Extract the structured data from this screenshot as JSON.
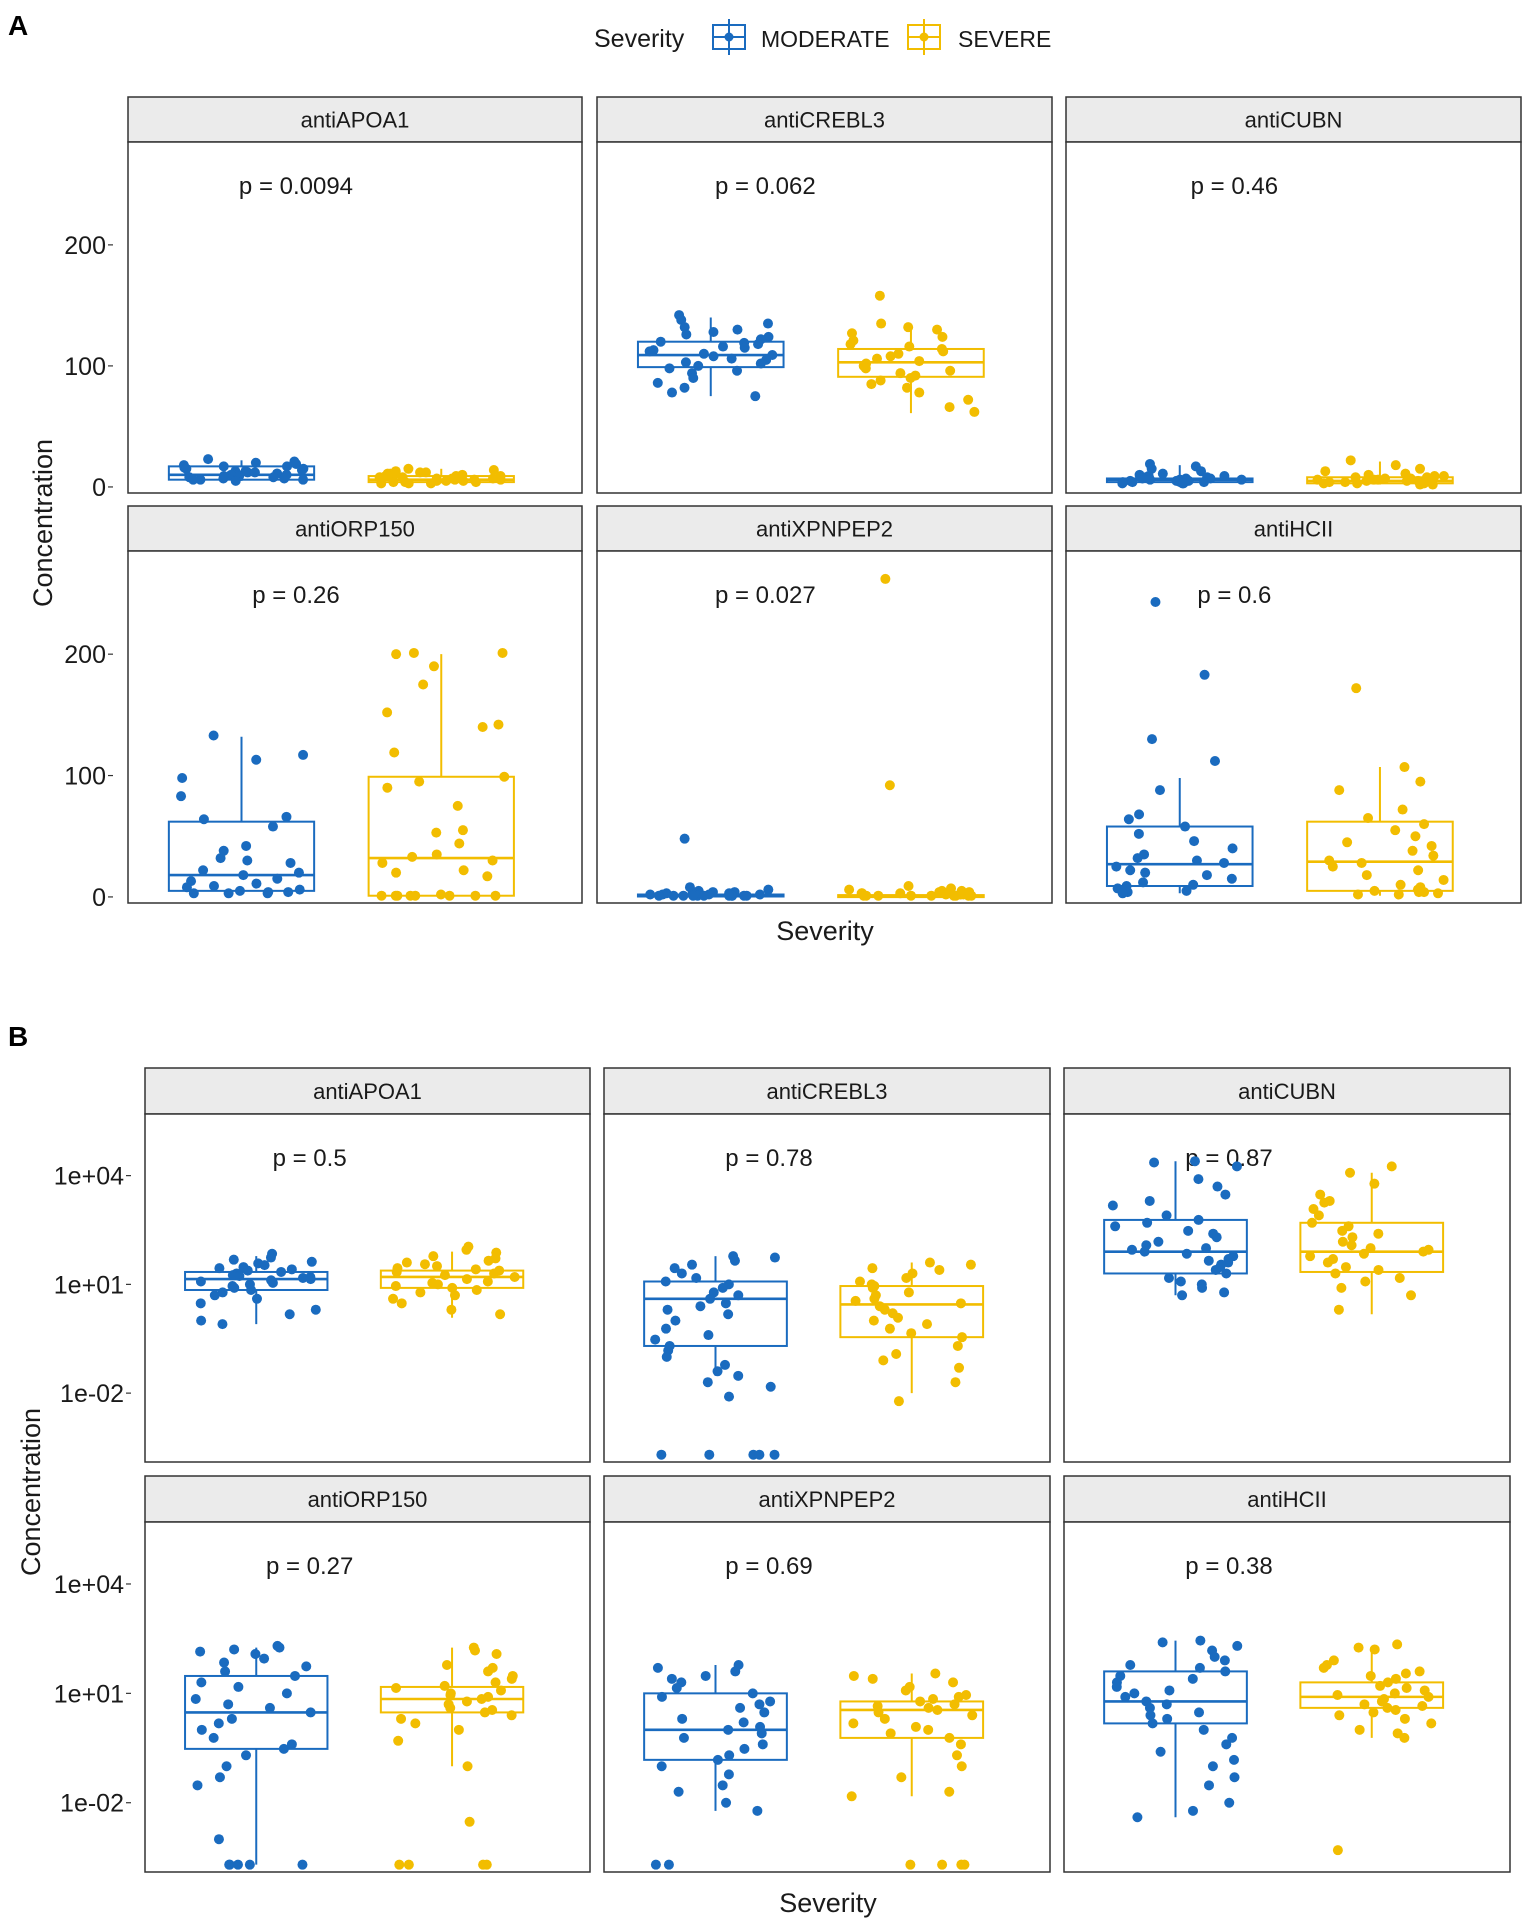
{
  "colors": {
    "moderate": "#1a6bbf",
    "severe": "#f2bd00",
    "strip_fill": "#ebebeb",
    "panel_border": "#333333",
    "text": "#1a1a1a"
  },
  "legend": {
    "title": "Severity",
    "entries": [
      "MODERATE",
      "SEVERE"
    ]
  },
  "chart_data": [
    {
      "panel_label": "A",
      "type": "box-jitter",
      "scale": "linear",
      "ylabel": "Concentration",
      "xlabel": "Severity",
      "ylim": [
        -5,
        285
      ],
      "yticks": [
        {
          "value": 0,
          "label": "0"
        },
        {
          "value": 100,
          "label": "100"
        },
        {
          "value": 200,
          "label": "200"
        }
      ],
      "facets": [
        {
          "title": "antiAPOA1",
          "p": "p = 0.0094",
          "moderate": {
            "q1": 6,
            "median": 10,
            "q3": 17,
            "lo": 5,
            "hi": 22,
            "points": [
              23,
              21,
              20,
              19,
              18,
              17,
              17,
              16,
              15,
              15,
              14,
              13,
              13,
              12,
              12,
              11,
              11,
              10,
              10,
              10,
              9,
              9,
              8,
              8,
              7,
              7,
              6,
              6,
              6,
              5
            ]
          },
          "severe": {
            "q1": 4,
            "median": 6,
            "q3": 9,
            "lo": 3,
            "hi": 15,
            "points": [
              15,
              14,
              13,
              12,
              12,
              11,
              11,
              10,
              10,
              9,
              9,
              9,
              8,
              8,
              8,
              7,
              7,
              7,
              6,
              6,
              6,
              5,
              5,
              5,
              4,
              4,
              4,
              3,
              3,
              3
            ]
          }
        },
        {
          "title": "antiCREBL3",
          "p": "p = 0.062",
          "moderate": {
            "q1": 99,
            "median": 109,
            "q3": 120,
            "lo": 75,
            "hi": 140,
            "points": [
              142,
              138,
              135,
              132,
              130,
              128,
              126,
              124,
              122,
              120,
              119,
              118,
              116,
              115,
              113,
              112,
              110,
              109,
              108,
              106,
              105,
              103,
              102,
              100,
              98,
              96,
              94,
              90,
              86,
              82,
              78,
              75
            ]
          },
          "severe": {
            "q1": 91,
            "median": 103,
            "q3": 114,
            "lo": 61,
            "hi": 133,
            "points": [
              158,
              135,
              132,
              130,
              127,
              124,
              121,
              118,
              116,
              114,
              112,
              110,
              108,
              106,
              104,
              102,
              100,
              98,
              96,
              94,
              92,
              90,
              88,
              85,
              82,
              78,
              72,
              66,
              62
            ]
          }
        },
        {
          "title": "antiCUBN",
          "p": "p = 0.46",
          "moderate": {
            "q1": 4,
            "median": 6,
            "q3": 7,
            "lo": 3,
            "hi": 18,
            "points": [
              19,
              17,
              15,
              13,
              11,
              10,
              9,
              9,
              8,
              8,
              7,
              7,
              7,
              6,
              6,
              6,
              5,
              5,
              5,
              5,
              4,
              4,
              4,
              4,
              3,
              3,
              3
            ]
          },
          "severe": {
            "q1": 3,
            "median": 5,
            "q3": 8,
            "lo": 2,
            "hi": 21,
            "points": [
              22,
              18,
              15,
              13,
              11,
              10,
              9,
              9,
              8,
              8,
              7,
              7,
              6,
              6,
              6,
              5,
              5,
              5,
              4,
              4,
              4,
              3,
              3,
              3,
              2,
              2
            ]
          }
        },
        {
          "title": "antiORP150",
          "p": "p = 0.26",
          "moderate": {
            "q1": 5,
            "median": 18,
            "q3": 62,
            "lo": 3,
            "hi": 132,
            "points": [
              133,
              117,
              113,
              98,
              83,
              66,
              64,
              58,
              42,
              38,
              32,
              30,
              28,
              22,
              20,
              18,
              15,
              13,
              11,
              9,
              8,
              6,
              5,
              4,
              4,
              3,
              3,
              3
            ]
          },
          "severe": {
            "q1": 1,
            "median": 32,
            "q3": 99,
            "lo": 0,
            "hi": 200,
            "points": [
              201,
              201,
              200,
              190,
              175,
              152,
              142,
              140,
              119,
              99,
              95,
              90,
              75,
              55,
              53,
              44,
              35,
              33,
              30,
              28,
              22,
              20,
              17,
              2,
              1,
              1,
              1,
              1,
              1,
              1,
              1,
              1
            ]
          }
        },
        {
          "title": "antiXPNPEP2",
          "p": "p = 0.027",
          "moderate": {
            "q1": 1,
            "median": 1.5,
            "q3": 2,
            "lo": 0.5,
            "hi": 3,
            "points": [
              48,
              8,
              6,
              5,
              4,
              4,
              3,
              3,
              3,
              2,
              2,
              2,
              2,
              2,
              1,
              1,
              1,
              1,
              1,
              1,
              1,
              1,
              1,
              1,
              1
            ]
          },
          "severe": {
            "q1": 0.5,
            "median": 1,
            "q3": 1.5,
            "lo": 0.3,
            "hi": 3,
            "points": [
              262,
              92,
              9,
              7,
              6,
              5,
              5,
              4,
              4,
              3,
              3,
              3,
              2,
              2,
              2,
              2,
              1,
              1,
              1,
              1,
              1,
              1,
              1,
              1,
              1
            ]
          }
        },
        {
          "title": "antiHCII",
          "p": "p = 0.6",
          "moderate": {
            "q1": 9,
            "median": 27,
            "q3": 58,
            "lo": 3,
            "hi": 98,
            "points": [
              243,
              183,
              130,
              112,
              88,
              68,
              64,
              58,
              52,
              46,
              40,
              35,
              32,
              30,
              28,
              25,
              22,
              20,
              18,
              15,
              12,
              10,
              9,
              7,
              5,
              4,
              3
            ]
          },
          "severe": {
            "q1": 5,
            "median": 29,
            "q3": 62,
            "lo": 1,
            "hi": 107,
            "points": [
              172,
              107,
              95,
              88,
              72,
              65,
              60,
              55,
              50,
              45,
              42,
              38,
              34,
              30,
              28,
              25,
              22,
              18,
              14,
              10,
              8,
              6,
              5,
              4,
              4,
              3,
              2,
              2
            ]
          }
        }
      ]
    },
    {
      "panel_label": "B",
      "type": "box-jitter",
      "scale": "log10",
      "ylabel": "Concentration",
      "xlabel": "Severity",
      "ylim_log10": [
        -3.9,
        5.7
      ],
      "yticks": [
        {
          "value": 0.01,
          "label": "1e-02"
        },
        {
          "value": 10,
          "label": "1e+01"
        },
        {
          "value": 10000,
          "label": "1e+04"
        }
      ],
      "facets": [
        {
          "title": "antiAPOA1",
          "p": "p = 0.5",
          "moderate": {
            "q1": 7,
            "median": 14,
            "q3": 22,
            "lo": 0.8,
            "hi": 60,
            "points": [
              70,
              55,
              48,
              42,
              38,
              34,
              30,
              28,
              26,
              24,
              22,
              20,
              18,
              17,
              16,
              15,
              14,
              13,
              12,
              11,
              10,
              9,
              8,
              7,
              6,
              5,
              4,
              3,
              2,
              1.5,
              1,
              0.8
            ]
          },
          "severe": {
            "q1": 8,
            "median": 16,
            "q3": 24,
            "lo": 1.2,
            "hi": 80,
            "points": [
              110,
              90,
              75,
              60,
              52,
              45,
              40,
              36,
              32,
              28,
              26,
              24,
              22,
              20,
              18,
              16,
              14,
              12,
              11,
              10,
              9,
              8,
              7,
              6,
              5,
              4,
              3,
              2,
              1.5
            ]
          }
        },
        {
          "title": "antiCREBL3",
          "p": "p = 0.78",
          "moderate": {
            "q1": 0.2,
            "median": 4,
            "q3": 12,
            "lo": 0.03,
            "hi": 60,
            "points": [
              60,
              55,
              45,
              35,
              28,
              20,
              15,
              12,
              10,
              8,
              6,
              5,
              4,
              3,
              2.5,
              2,
              1.5,
              1,
              0.6,
              0.4,
              0.3,
              0.2,
              0.15,
              0.1,
              0.06,
              0.04,
              0.03,
              0.02,
              0.015,
              0.008,
              0.0002,
              0.0002,
              0.0002,
              0.0002,
              0.0002
            ]
          },
          "severe": {
            "q1": 0.35,
            "median": 2.8,
            "q3": 9,
            "lo": 0.01,
            "hi": 40,
            "points": [
              40,
              35,
              28,
              25,
              20,
              15,
              12,
              10,
              9,
              8,
              6,
              5,
              4,
              3.5,
              3,
              2.5,
              2,
              1.6,
              1.2,
              1,
              0.8,
              0.6,
              0.45,
              0.35,
              0.2,
              0.12,
              0.08,
              0.05,
              0.02,
              0.006
            ]
          }
        },
        {
          "title": "antiCUBN",
          "p": "p = 0.87",
          "moderate": {
            "q1": 20,
            "median": 80,
            "q3": 600,
            "lo": 5,
            "hi": 25000,
            "points": [
              25000,
              23000,
              18000,
              8000,
              5000,
              3000,
              2000,
              1500,
              800,
              600,
              500,
              400,
              300,
              250,
              200,
              150,
              120,
              100,
              90,
              80,
              70,
              60,
              50,
              45,
              40,
              35,
              30,
              25,
              20,
              15,
              12,
              10,
              8,
              6,
              5
            ]
          },
          "severe": {
            "q1": 22,
            "median": 80,
            "q3": 500,
            "lo": 1.5,
            "hi": 12000,
            "points": [
              18000,
              12000,
              6000,
              3000,
              2000,
              1800,
              1200,
              800,
              500,
              400,
              300,
              250,
              200,
              150,
              120,
              100,
              90,
              80,
              70,
              60,
              50,
              40,
              30,
              25,
              20,
              15,
              12,
              8,
              5,
              2
            ]
          }
        },
        {
          "title": "antiORP150",
          "p": "p = 0.27",
          "moderate": {
            "q1": 0.3,
            "median": 3,
            "q3": 30,
            "lo": 0.0002,
            "hi": 180,
            "points": [
              200,
              180,
              160,
              140,
              120,
              90,
              70,
              55,
              40,
              30,
              20,
              15,
              10,
              7,
              5,
              4,
              3,
              2,
              1.5,
              1,
              0.6,
              0.4,
              0.3,
              0.2,
              0.1,
              0.05,
              0.03,
              0.001,
              0.0002,
              0.0002,
              0.0002,
              0.0002,
              0.0002
            ]
          },
          "severe": {
            "q1": 3,
            "median": 7,
            "q3": 15,
            "lo": 0.1,
            "hi": 180,
            "points": [
              180,
              150,
              120,
              60,
              50,
              40,
              30,
              25,
              20,
              16,
              14,
              12,
              10,
              9,
              8,
              7,
              6,
              5,
              4,
              3.5,
              3,
              2.5,
              2,
              1.5,
              1,
              0.5,
              0.1,
              0.003,
              0.0002,
              0.0002,
              0.0002,
              0.0002
            ]
          }
        },
        {
          "title": "antiXPNPEP2",
          "p": "p = 0.69",
          "moderate": {
            "q1": 0.15,
            "median": 1,
            "q3": 10,
            "lo": 0.006,
            "hi": 60,
            "points": [
              60,
              50,
              40,
              30,
              25,
              20,
              14,
              10,
              8,
              6,
              5,
              4,
              3,
              2,
              1.6,
              1.2,
              1,
              0.8,
              0.6,
              0.4,
              0.3,
              0.2,
              0.15,
              0.1,
              0.06,
              0.03,
              0.02,
              0.01,
              0.006,
              0.0002,
              0.0002
            ]
          },
          "severe": {
            "q1": 0.6,
            "median": 3.5,
            "q3": 6,
            "lo": 0.015,
            "hi": 35,
            "points": [
              35,
              30,
              25,
              20,
              15,
              12,
              9,
              8,
              7,
              6,
              5,
              4.5,
              4,
              3.5,
              3,
              2.5,
              2,
              1.5,
              1.2,
              1,
              0.8,
              0.6,
              0.4,
              0.2,
              0.1,
              0.05,
              0.02,
              0.015,
              0.0002,
              0.0002,
              0.0002,
              0.0002
            ]
          }
        },
        {
          "title": "antiHCII",
          "p": "p = 0.38",
          "moderate": {
            "q1": 1.5,
            "median": 6,
            "q3": 40,
            "lo": 0.004,
            "hi": 280,
            "points": [
              280,
              250,
              200,
              150,
              100,
              80,
              60,
              50,
              40,
              30,
              25,
              20,
              15,
              12,
              10,
              8,
              6,
              5,
              4,
              3,
              2.5,
              2,
              1.5,
              1,
              0.6,
              0.4,
              0.25,
              0.15,
              0.1,
              0.05,
              0.03,
              0.01,
              0.006,
              0.004
            ]
          },
          "severe": {
            "q1": 4,
            "median": 8,
            "q3": 20,
            "lo": 0.6,
            "hi": 180,
            "points": [
              220,
              180,
              160,
              80,
              60,
              50,
              40,
              35,
              30,
              25,
              20,
              16,
              14,
              12,
              10,
              9,
              8,
              7,
              6,
              5,
              4.5,
              4,
              3.5,
              3,
              2.5,
              2,
              1.5,
              1,
              0.8,
              0.6,
              0.0005
            ]
          }
        }
      ]
    }
  ]
}
